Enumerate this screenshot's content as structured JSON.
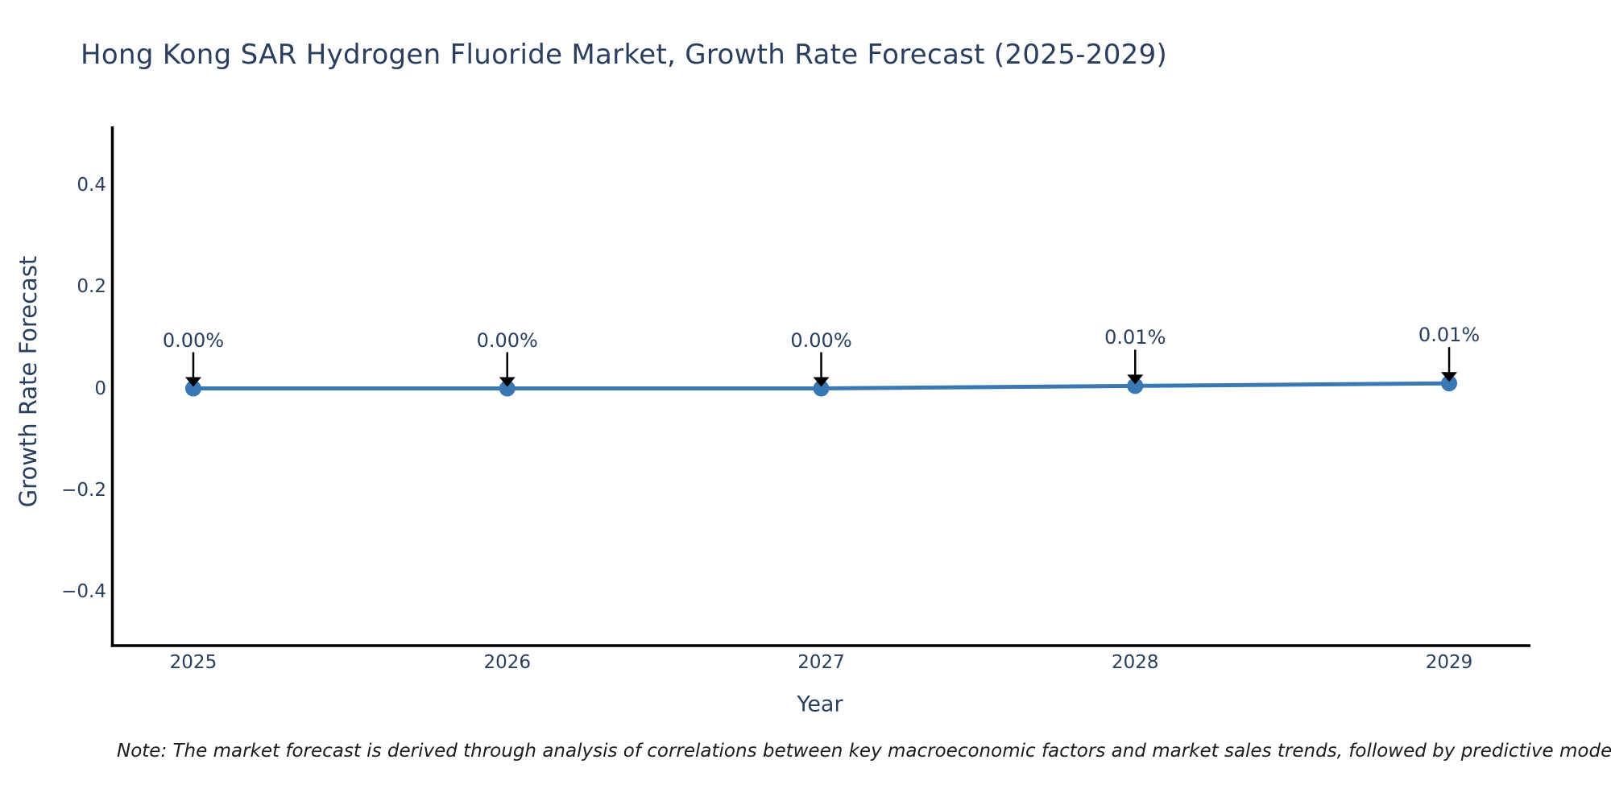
{
  "title": "Hong Kong SAR Hydrogen Fluoride Market, Growth Rate Forecast (2025-2029)",
  "note": "Note: The market forecast is derived through analysis of correlations between key macroeconomic factors and market sales trends, followed by predictive modeling to project future sa",
  "colors": {
    "text": "#2a3f5f",
    "line": "#3a78b3",
    "marker": "#3a78b3",
    "axis": "#000000",
    "arrow": "#000000",
    "background": "#ffffff",
    "note_text": "#1c1c1c"
  },
  "chart_data": {
    "type": "line",
    "title": "Hong Kong SAR Hydrogen Fluoride Market, Growth Rate Forecast (2025-2029)",
    "xlabel": "Year",
    "ylabel": "Growth Rate Forecast",
    "x": [
      2025,
      2026,
      2027,
      2028,
      2029
    ],
    "x_tick_labels": [
      "2025",
      "2026",
      "2027",
      "2028",
      "2029"
    ],
    "values": [
      0.0,
      0.0,
      0.0,
      0.005,
      0.01
    ],
    "point_labels": [
      "0.00%",
      "0.00%",
      "0.00%",
      "0.01%",
      "0.01%"
    ],
    "y_ticks": [
      0.4,
      0.2,
      0,
      -0.2,
      -0.4
    ],
    "y_tick_labels": [
      "0.4",
      "0.2",
      "0",
      "−0.2",
      "−0.4"
    ],
    "xlim": [
      2024.741,
      2029.259
    ],
    "ylim": [
      -0.506,
      0.514
    ],
    "grid": false,
    "legend": "none",
    "marker": "circle",
    "annotation_style": "arrow-down"
  }
}
